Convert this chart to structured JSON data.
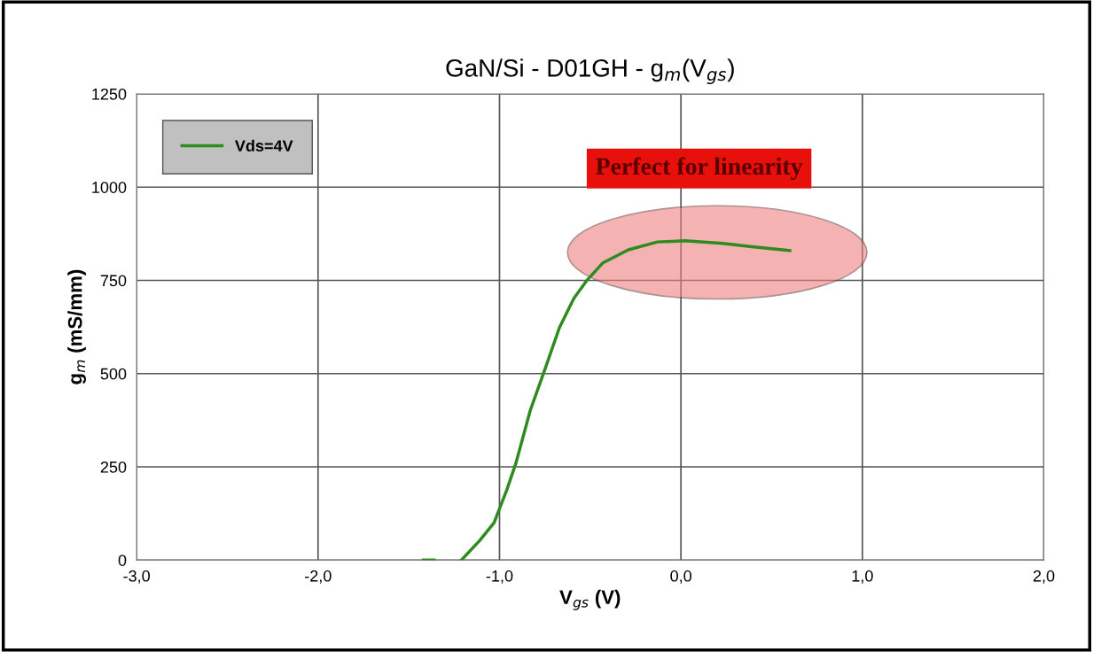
{
  "chart_data": {
    "type": "line",
    "title": "GaN/Si - D01GH - g$_{m}$(V$_{gs}$)",
    "xlabel": "V$_{gs}$ (V)",
    "ylabel": "g$_{m}$ (mS/mm)",
    "series": [
      {
        "name": "Vds=4V",
        "color": "#2e8b1e",
        "x": [
          -1.42,
          -1.36,
          -1.3,
          -1.21,
          -1.11,
          -1.03,
          -0.96,
          -0.91,
          -0.83,
          -0.75,
          -0.67,
          -0.59,
          -0.52,
          -0.43,
          -0.29,
          -0.13,
          0.02,
          0.23,
          0.39,
          0.6
        ],
        "values": [
          0,
          0,
          null,
          0,
          52,
          100,
          188,
          259,
          402,
          511,
          623,
          702,
          749,
          797,
          832,
          853,
          856,
          849,
          840,
          830
        ]
      }
    ],
    "xlim": [
      -3,
      2
    ],
    "xticks": [
      {
        "value": -3,
        "label": "-3,0"
      },
      {
        "value": -2,
        "label": "-2,0"
      },
      {
        "value": -1,
        "label": "-1,0"
      },
      {
        "value": 0,
        "label": "0,0"
      },
      {
        "value": 1,
        "label": "1,0"
      },
      {
        "value": 2,
        "label": "2,0"
      }
    ],
    "ylim": [
      0,
      1250
    ],
    "yticks": [
      0,
      250,
      500,
      750,
      1000,
      1250
    ],
    "grid": true,
    "legend": "top left",
    "line_style": "solid",
    "marker": "none",
    "annotations": [
      "Perfect for linearity"
    ]
  }
}
